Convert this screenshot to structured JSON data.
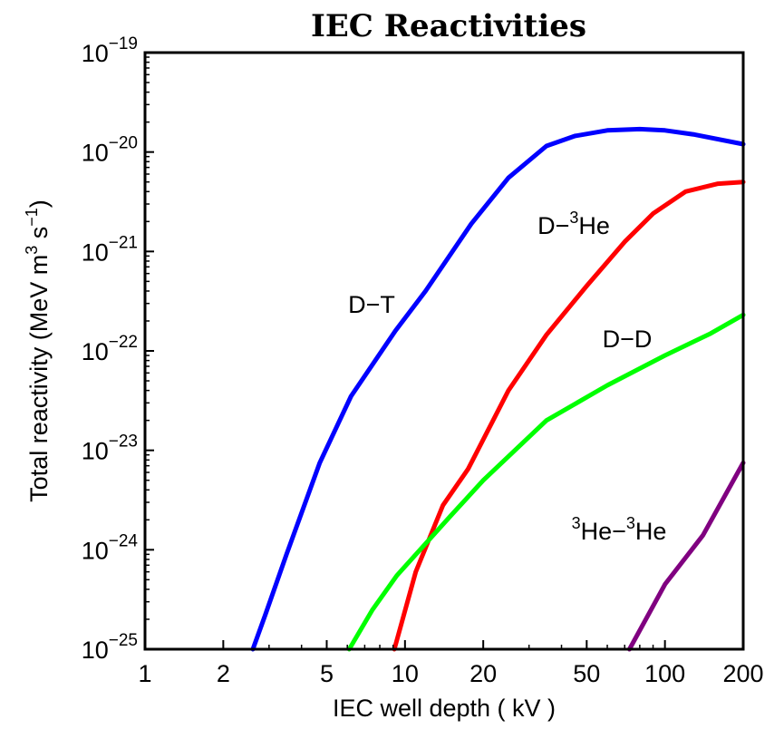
{
  "chart_data": {
    "type": "line",
    "title": "IEC Reactivities",
    "xlabel": "IEC well depth ( kV )",
    "ylabel": "Total reactivity (MeV m3 s-1)",
    "ylabel_parts": [
      "Total reactivity (MeV m",
      "3",
      " s",
      "−1",
      ")"
    ],
    "xscale": "log",
    "yscale": "log",
    "xlim": [
      1,
      200
    ],
    "ylim": [
      1e-25,
      1e-19
    ],
    "grid": false,
    "x_ticks": [
      {
        "value": 1,
        "label": "1"
      },
      {
        "value": 2,
        "label": "2"
      },
      {
        "value": 5,
        "label": "5"
      },
      {
        "value": 10,
        "label": "10"
      },
      {
        "value": 20,
        "label": "20"
      },
      {
        "value": 50,
        "label": "50"
      },
      {
        "value": 100,
        "label": "100"
      },
      {
        "value": 200,
        "label": "200"
      }
    ],
    "y_ticks": [
      {
        "value": 1e-19,
        "base": "10",
        "exp": "−19"
      },
      {
        "value": 1e-20,
        "base": "10",
        "exp": "−20"
      },
      {
        "value": 1e-21,
        "base": "10",
        "exp": "−21"
      },
      {
        "value": 1e-22,
        "base": "10",
        "exp": "−22"
      },
      {
        "value": 1e-23,
        "base": "10",
        "exp": "−23"
      },
      {
        "value": 1e-24,
        "base": "10",
        "exp": "−24"
      },
      {
        "value": 1e-25,
        "base": "10",
        "exp": "−25"
      }
    ],
    "series": [
      {
        "name": "D−T",
        "label_parts": [
          [
            "D−T",
            false
          ]
        ],
        "color": "#0000ff",
        "points": [
          [
            2.6,
            1e-25
          ],
          [
            2.9,
            2.2e-25
          ],
          [
            3.5,
            9e-25
          ],
          [
            4.7,
            7.5e-24
          ],
          [
            6.2,
            3.5e-23
          ],
          [
            9.2,
            1.6e-22
          ],
          [
            12,
            4e-22
          ],
          [
            18,
            1.9e-21
          ],
          [
            25,
            5.5e-21
          ],
          [
            35,
            1.15e-20
          ],
          [
            45,
            1.45e-20
          ],
          [
            60,
            1.65e-20
          ],
          [
            80,
            1.7e-20
          ],
          [
            100,
            1.65e-20
          ],
          [
            130,
            1.5e-20
          ],
          [
            200,
            1.2e-20
          ]
        ]
      },
      {
        "name": "D−³He",
        "label_parts": [
          [
            "D−",
            false
          ],
          [
            "3",
            true
          ],
          [
            "He",
            false
          ]
        ],
        "color": "#ff0000",
        "points": [
          [
            9.1,
            1e-25
          ],
          [
            11,
            6e-25
          ],
          [
            14,
            2.8e-24
          ],
          [
            17.5,
            6.5e-24
          ],
          [
            25,
            4e-23
          ],
          [
            35,
            1.45e-22
          ],
          [
            50,
            4.5e-22
          ],
          [
            70,
            1.25e-21
          ],
          [
            90,
            2.4e-21
          ],
          [
            120,
            4e-21
          ],
          [
            160,
            4.8e-21
          ],
          [
            200,
            5e-21
          ]
        ]
      },
      {
        "name": "D−D",
        "label_parts": [
          [
            "D−D",
            false
          ]
        ],
        "color": "#00ff00",
        "points": [
          [
            6.1,
            1e-25
          ],
          [
            7.5,
            2.5e-25
          ],
          [
            9.3,
            5.5e-25
          ],
          [
            15,
            2.2e-24
          ],
          [
            20,
            5e-24
          ],
          [
            35,
            2e-23
          ],
          [
            60,
            4.5e-23
          ],
          [
            100,
            9e-23
          ],
          [
            150,
            1.5e-22
          ],
          [
            200,
            2.3e-22
          ]
        ]
      },
      {
        "name": "³He−³He",
        "label_parts": [
          [
            "3",
            true
          ],
          [
            "He−",
            false
          ],
          [
            "3",
            true
          ],
          [
            "He",
            false
          ]
        ],
        "color": "#800080",
        "points": [
          [
            73,
            1e-25
          ],
          [
            100,
            4.5e-25
          ],
          [
            140,
            1.4e-24
          ],
          [
            200,
            7.5e-24
          ]
        ]
      }
    ]
  }
}
